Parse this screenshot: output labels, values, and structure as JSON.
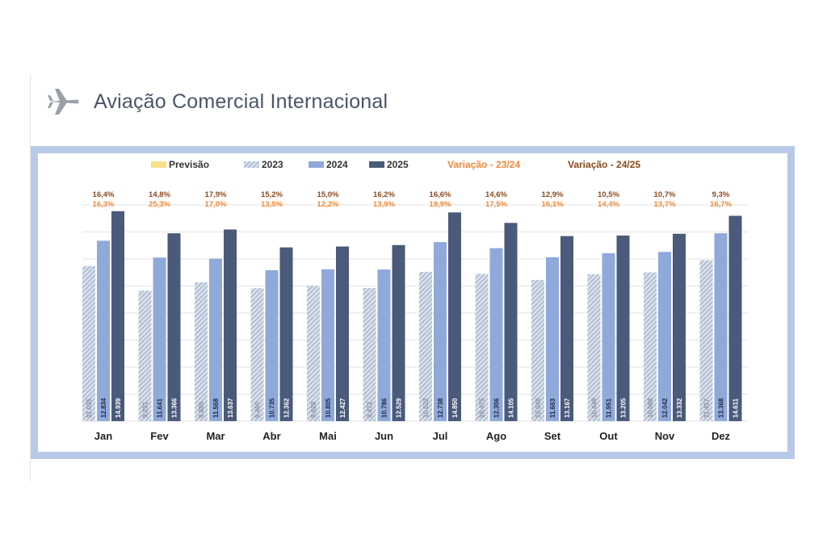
{
  "header": {
    "title": "Aviação Comercial Internacional",
    "icon": "airplane-icon"
  },
  "colors": {
    "previsao": "#f7e08a",
    "y2023": "#c5cfe0",
    "y2024": "#8fa9da",
    "y2025": "#4a5a7a",
    "var2324": "#f08a3a",
    "var2425": "#8a4a1e",
    "frame": "#b8c9e8"
  },
  "chart_data": {
    "type": "bar",
    "categories": [
      "Jan",
      "Fev",
      "Mar",
      "Abr",
      "Mai",
      "Jun",
      "Jul",
      "Ago",
      "Set",
      "Out",
      "Nov",
      "Dez"
    ],
    "legend": {
      "previsao": "Previsão",
      "y2023": "2023",
      "y2024": "2024",
      "y2025": "2025",
      "var2324": "Variação - 23/24",
      "var2425": "Variação - 24/25"
    },
    "series": [
      {
        "name": "2023",
        "values": [
          11035,
          9291,
          9885,
          9460,
          9628,
          9472,
          10622,
          10475,
          10048,
          10449,
          10588,
          11457
        ],
        "labels": [
          "11.035",
          "9.291",
          "9.885",
          "9.460",
          "9.628",
          "9.472",
          "10.622",
          "10.475",
          "10.048",
          "10.449",
          "10.588",
          "11.457"
        ]
      },
      {
        "name": "2024",
        "values": [
          12834,
          11641,
          11568,
          10735,
          10805,
          10786,
          12738,
          12306,
          11663,
          11951,
          12042,
          13368
        ],
        "labels": [
          "12.834",
          "11.641",
          "11.568",
          "10.735",
          "10.805",
          "10.786",
          "12.738",
          "12.306",
          "11.663",
          "11.951",
          "12.042",
          "13.368"
        ]
      },
      {
        "name": "2025",
        "values": [
          14939,
          13366,
          13637,
          12362,
          12427,
          12529,
          14850,
          14105,
          13167,
          13205,
          13332,
          14611
        ],
        "labels": [
          "14.939",
          "13.366",
          "13.637",
          "12.362",
          "12.427",
          "12.529",
          "14.850",
          "14.105",
          "13.167",
          "13.205",
          "13.332",
          "14.611"
        ]
      }
    ],
    "variacao_23_24": [
      "16,3%",
      "25,3%",
      "17,0%",
      "13,5%",
      "12,2%",
      "13,9%",
      "19,9%",
      "17,5%",
      "16,1%",
      "14,4%",
      "13,7%",
      "16,7%"
    ],
    "variacao_24_25": [
      "16,4%",
      "14,8%",
      "17,9%",
      "15,2%",
      "15,0%",
      "16,2%",
      "16,6%",
      "14,6%",
      "12,9%",
      "10,5%",
      "10,7%",
      "9,3%"
    ],
    "ylim": [
      0,
      15500
    ],
    "grid": true,
    "legend_position": "top"
  }
}
